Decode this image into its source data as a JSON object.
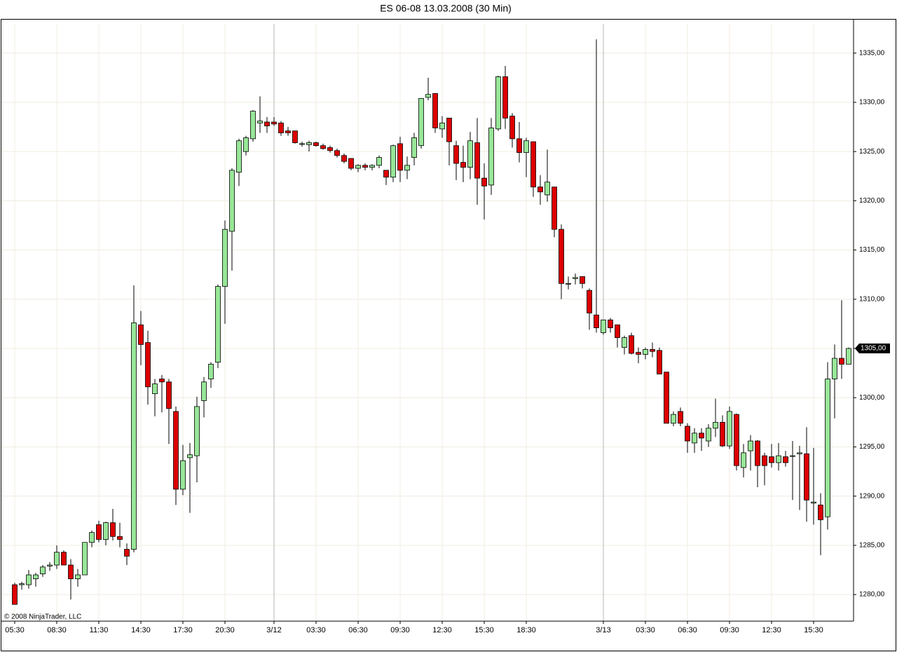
{
  "chart_data": {
    "type": "candlestick",
    "title": "ES 06-08  13.03.2008 (30 Min)",
    "copyright": "© 2008 NinjaTrader, LLC",
    "categories": [
      "05:30",
      null,
      null,
      null,
      null,
      null,
      "08:30",
      null,
      null,
      null,
      null,
      null,
      "11:30",
      null,
      null,
      null,
      null,
      null,
      "14:30",
      null,
      null,
      null,
      null,
      null,
      "17:30",
      null,
      null,
      null,
      null,
      null,
      "20:30",
      null,
      null,
      null,
      null,
      null,
      null,
      "3/12",
      null,
      null,
      null,
      null,
      null,
      "03:30",
      null,
      null,
      null,
      null,
      null,
      "06:30",
      null,
      null,
      null,
      null,
      null,
      "09:30",
      null,
      null,
      null,
      null,
      null,
      "12:30",
      null,
      null,
      null,
      null,
      null,
      "15:30",
      null,
      null,
      null,
      null,
      null,
      "18:30",
      null,
      null,
      null,
      null,
      null,
      null,
      null,
      null,
      null,
      null,
      "3/13",
      null,
      null,
      null,
      null,
      null,
      "03:30",
      null,
      null,
      null,
      null,
      null,
      "06:30",
      null,
      null,
      null,
      null,
      null,
      "09:30",
      null,
      null,
      null,
      null,
      null,
      "12:30",
      null,
      null,
      null,
      null,
      null,
      "15:30",
      null,
      null,
      null,
      null,
      null
    ],
    "open": [
      1281,
      1281,
      1281,
      1281.6,
      1282.1,
      1282.9,
      1283,
      1284.3,
      1283,
      1281.6,
      1282,
      1285.3,
      1287.1,
      1285.6,
      1287.3,
      1285.9,
      1284.6,
      1284.6,
      1307.4,
      1305.6,
      1300.4,
      1301.9,
      1301.6,
      1298.6,
      1290.7,
      1293.9,
      1294.1,
      1299.7,
      1301.9,
      1303.6,
      1311.3,
      1316.9,
      1322.9,
      1325,
      1326.3,
      1327.9,
      1328,
      1328,
      1327.9,
      1327.1,
      1327.1,
      1325.8,
      1325.7,
      1325.9,
      1325.6,
      1325.4,
      1325.1,
      1324.6,
      1324.3,
      1323.3,
      1323.6,
      1323.4,
      1323.6,
      1323.1,
      1322.4,
      1325.8,
      1323.1,
      1324.4,
      1325.6,
      1330.5,
      1330.9,
      1327.3,
      1328.4,
      1325.6,
      1323.9,
      1323.4,
      1325.9,
      1322.3,
      1321.6,
      1327.3,
      1332.6,
      1328.6,
      1326.3,
      1324.9,
      1326,
      1321.4,
      1320.6,
      1321.4,
      1317.1,
      1311.6,
      1312.1,
      1312.3,
      1310.9,
      1308.4,
      1306.6,
      1307.9,
      1307.4,
      1305.1,
      1306.3,
      1304.6,
      1304.4,
      1304.9,
      1304.8,
      1302.6,
      1297.4,
      1298.6,
      1297.1,
      1295.4,
      1296.4,
      1295.6,
      1296.9,
      1297.5,
      1295.1,
      1298.3,
      1292.9,
      1294.6,
      1295.6,
      1294.1,
      1294,
      1293.4,
      1294,
      1294.1,
      1294.3,
      1294.3,
      1289.3,
      1289.1,
      1287.9,
      1301.9,
      1304,
      1303.4
    ],
    "high": [
      1281.2,
      1281.3,
      1282.5,
      1282.2,
      1283,
      1283.3,
      1285,
      1284.5,
      1283.6,
      1282.6,
      1285.3,
      1286.5,
      1287.5,
      1287.4,
      1288.7,
      1287.3,
      1285.2,
      1311.4,
      1308.8,
      1306.8,
      1301.9,
      1302.3,
      1301.9,
      1299.1,
      1295.2,
      1295.4,
      1300.1,
      1302.1,
      1303.6,
      1311.5,
      1318,
      1323.3,
      1326.3,
      1326.6,
      1329.2,
      1330.6,
      1328.5,
      1328.5,
      1328.1,
      1327.5,
      1327.1,
      1326,
      1326.1,
      1326,
      1325.8,
      1325.6,
      1325.3,
      1324.8,
      1324.3,
      1323.7,
      1323.8,
      1323.7,
      1324.6,
      1323.1,
      1325.7,
      1326.5,
      1324.5,
      1326.9,
      1330.4,
      1332.5,
      1330.9,
      1328.6,
      1328.4,
      1326.1,
      1325.6,
      1327,
      1328.4,
      1323.8,
      1328.4,
      1332.7,
      1333.7,
      1328.9,
      1328,
      1326.4,
      1326,
      1322.6,
      1325.2,
      1321.4,
      1317.6,
      1312.3,
      1312.6,
      1312.3,
      1311.1,
      1336.4,
      1307.9,
      1308.1,
      1307.4,
      1306.3,
      1306.6,
      1305.1,
      1305.1,
      1305.6,
      1305.1,
      1302.6,
      1298.6,
      1299,
      1297.4,
      1296.9,
      1296.9,
      1297.3,
      1299.9,
      1298.2,
      1299.1,
      1298.4,
      1295.3,
      1296.2,
      1295.7,
      1294.4,
      1295.3,
      1295.4,
      1294.6,
      1295.6,
      1295.1,
      1297,
      1294.9,
      1290.3,
      1303.6,
      1305.4,
      1309.9,
      1305.1
    ],
    "low": [
      1279,
      1280.5,
      1280.6,
      1280.8,
      1281.8,
      1282.4,
      1282.6,
      1283,
      1279.5,
      1280.8,
      1282,
      1284.8,
      1285.3,
      1285,
      1285.5,
      1284.8,
      1283,
      1284.3,
      1303.3,
      1299.3,
      1298.1,
      1298.5,
      1295.3,
      1289.1,
      1290.1,
      1288.3,
      1291.4,
      1298,
      1301,
      1303,
      1307.5,
      1312.9,
      1321.5,
      1324.6,
      1326,
      1326.9,
      1326.9,
      1327.6,
      1326.6,
      1326.6,
      1325.8,
      1325.5,
      1325,
      1325.5,
      1325.2,
      1324.9,
      1324.4,
      1323.8,
      1323.1,
      1322.9,
      1323.1,
      1323.1,
      1323.3,
      1321.6,
      1321.9,
      1321.9,
      1322.2,
      1323.6,
      1325.3,
      1330.2,
      1326.9,
      1326.4,
      1323.6,
      1322.1,
      1321.9,
      1322.2,
      1319.6,
      1318.1,
      1320.6,
      1327.1,
      1327.3,
      1325.4,
      1323.9,
      1322.4,
      1320.4,
      1319.6,
      1319.9,
      1316.3,
      1310,
      1311,
      1311.5,
      1311.1,
      1306.9,
      1306.6,
      1306.4,
      1306.6,
      1305.1,
      1304.4,
      1304.4,
      1303.5,
      1303.9,
      1304.1,
      1302.4,
      1297.4,
      1297.1,
      1297.1,
      1294.4,
      1294.4,
      1294.6,
      1295,
      1296,
      1295,
      1294.8,
      1292.6,
      1291.9,
      1292.6,
      1290.9,
      1291.1,
      1292.9,
      1292.6,
      1293,
      1289.6,
      1288.6,
      1287.4,
      1287.1,
      1284,
      1286.6,
      1297.9,
      1301.9,
      1303.4
    ],
    "close": [
      1279,
      1281.1,
      1282,
      1282,
      1282.8,
      1283,
      1284.3,
      1283,
      1281.6,
      1282,
      1285.3,
      1286.3,
      1285.6,
      1287.3,
      1285.9,
      1285.6,
      1283.9,
      1307.6,
      1305.4,
      1301.1,
      1301.4,
      1301.6,
      1298.9,
      1290.7,
      1293.6,
      1294.2,
      1299.1,
      1301.6,
      1303.4,
      1311.3,
      1317.1,
      1323.1,
      1326.1,
      1326.4,
      1329.1,
      1328.1,
      1327.6,
      1327.8,
      1326.9,
      1326.9,
      1325.9,
      1325.8,
      1325.9,
      1325.6,
      1325.3,
      1325.1,
      1324.6,
      1324,
      1323.3,
      1323.6,
      1323.4,
      1323.6,
      1324.4,
      1322.4,
      1325.6,
      1323.1,
      1323.6,
      1326.4,
      1330.4,
      1330.8,
      1327.4,
      1327.9,
      1326,
      1323.8,
      1323.4,
      1326.1,
      1322.3,
      1321.5,
      1327.4,
      1332.6,
      1328.4,
      1326.3,
      1324.9,
      1326.1,
      1321.4,
      1320.9,
      1321.9,
      1317.1,
      1311.6,
      1311.6,
      1312.2,
      1311.6,
      1308.6,
      1307.1,
      1307.9,
      1307.1,
      1306.1,
      1306.1,
      1304.5,
      1304.4,
      1304.9,
      1304.7,
      1302.4,
      1297.4,
      1298.3,
      1297.4,
      1295.6,
      1296.4,
      1295.9,
      1296.9,
      1297.5,
      1295.1,
      1298.6,
      1293.1,
      1294.4,
      1295.6,
      1293.1,
      1293.1,
      1293.4,
      1294.1,
      1293.4,
      1294.1,
      1294.4,
      1289.6,
      1289.4,
      1287.6,
      1301.9,
      1304,
      1303.4,
      1305
    ],
    "up_color": "#98e698",
    "down_color": "#dd0000",
    "ylim": [
      1277.3,
      1338.4
    ],
    "yticks": [
      {
        "value": 1280,
        "label": "1280,00"
      },
      {
        "value": 1285,
        "label": "1285,00"
      },
      {
        "value": 1290,
        "label": "1290,00"
      },
      {
        "value": 1295,
        "label": "1295,00"
      },
      {
        "value": 1300,
        "label": "1300,00"
      },
      {
        "value": 1305,
        "label": "1305,00"
      },
      {
        "value": 1310,
        "label": "1310,00"
      },
      {
        "value": 1315,
        "label": "1315,00"
      },
      {
        "value": 1320,
        "label": "1320,00"
      },
      {
        "value": 1325,
        "label": "1325,00"
      },
      {
        "value": 1330,
        "label": "1330,00"
      },
      {
        "value": 1335,
        "label": "1335,00"
      }
    ],
    "last_price": {
      "value": 1305,
      "label": "1305,00"
    },
    "grid": true
  }
}
